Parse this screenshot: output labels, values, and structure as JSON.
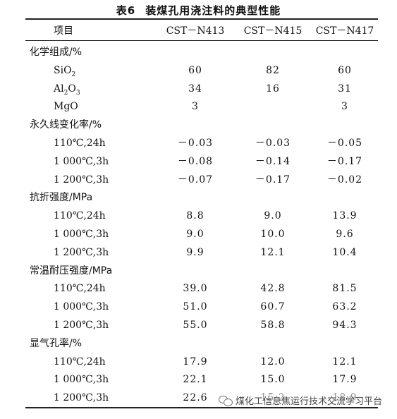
{
  "caption": {
    "number": "表6",
    "title": "装煤孔用浇注料的典型性能"
  },
  "columns": [
    "项目",
    "CST－N413",
    "CST－N415",
    "CST－N417"
  ],
  "rows": [
    {
      "type": "group",
      "label": "化学组成/%"
    },
    {
      "type": "sub",
      "label_parts": [
        "SiO",
        "2",
        ""
      ],
      "values": [
        "60",
        "82",
        "60"
      ]
    },
    {
      "type": "sub",
      "label_parts": [
        "Al",
        "2",
        "O",
        "3"
      ],
      "values": [
        "34",
        "16",
        "31"
      ]
    },
    {
      "type": "sub",
      "label_parts": [
        "MgO"
      ],
      "values": [
        "3",
        "",
        "3"
      ]
    },
    {
      "type": "group",
      "label": "永久线变化率/%"
    },
    {
      "type": "sub",
      "label": "110℃,24h",
      "values": [
        "－0.03",
        "－0.03",
        "－0.05"
      ]
    },
    {
      "type": "sub",
      "label": "1 000℃,3h",
      "values": [
        "－0.08",
        "－0.14",
        "－0.17"
      ]
    },
    {
      "type": "sub",
      "label": "1 200℃,3h",
      "values": [
        "－0.07",
        "－0.17",
        "－0.02"
      ]
    },
    {
      "type": "group",
      "label": "抗折强度/MPa"
    },
    {
      "type": "sub",
      "label": "110℃,24h",
      "values": [
        "8.8",
        "9.0",
        "13.9"
      ]
    },
    {
      "type": "sub",
      "label": "1 000℃,3h",
      "values": [
        "9.0",
        "10.0",
        "9.6"
      ]
    },
    {
      "type": "sub",
      "label": "1 200℃,3h",
      "values": [
        "9.9",
        "12.1",
        "10.4"
      ]
    },
    {
      "type": "group",
      "label": "常温耐压强度/MPa"
    },
    {
      "type": "sub",
      "label": "110℃,24h",
      "values": [
        "39.0",
        "42.8",
        "81.5"
      ]
    },
    {
      "type": "sub",
      "label": "1 000℃,3h",
      "values": [
        "51.0",
        "60.7",
        "63.2"
      ]
    },
    {
      "type": "sub",
      "label": "1 200℃,3h",
      "values": [
        "55.0",
        "58.8",
        "94.3"
      ]
    },
    {
      "type": "group",
      "label": "显气孔率/%"
    },
    {
      "type": "sub",
      "label": "110℃,24h",
      "values": [
        "17.9",
        "12.0",
        "12.1"
      ]
    },
    {
      "type": "sub",
      "label": "1 000℃,3h",
      "values": [
        "22.1",
        "15.0",
        "17.9"
      ]
    },
    {
      "type": "sub",
      "label": "1 200℃,3h",
      "values": [
        "22.6",
        "15.2",
        "18.9"
      ]
    }
  ],
  "watermark": {
    "text": "煤化工信息焦运行技术交流学习平台",
    "icon": "wechat-icon"
  }
}
